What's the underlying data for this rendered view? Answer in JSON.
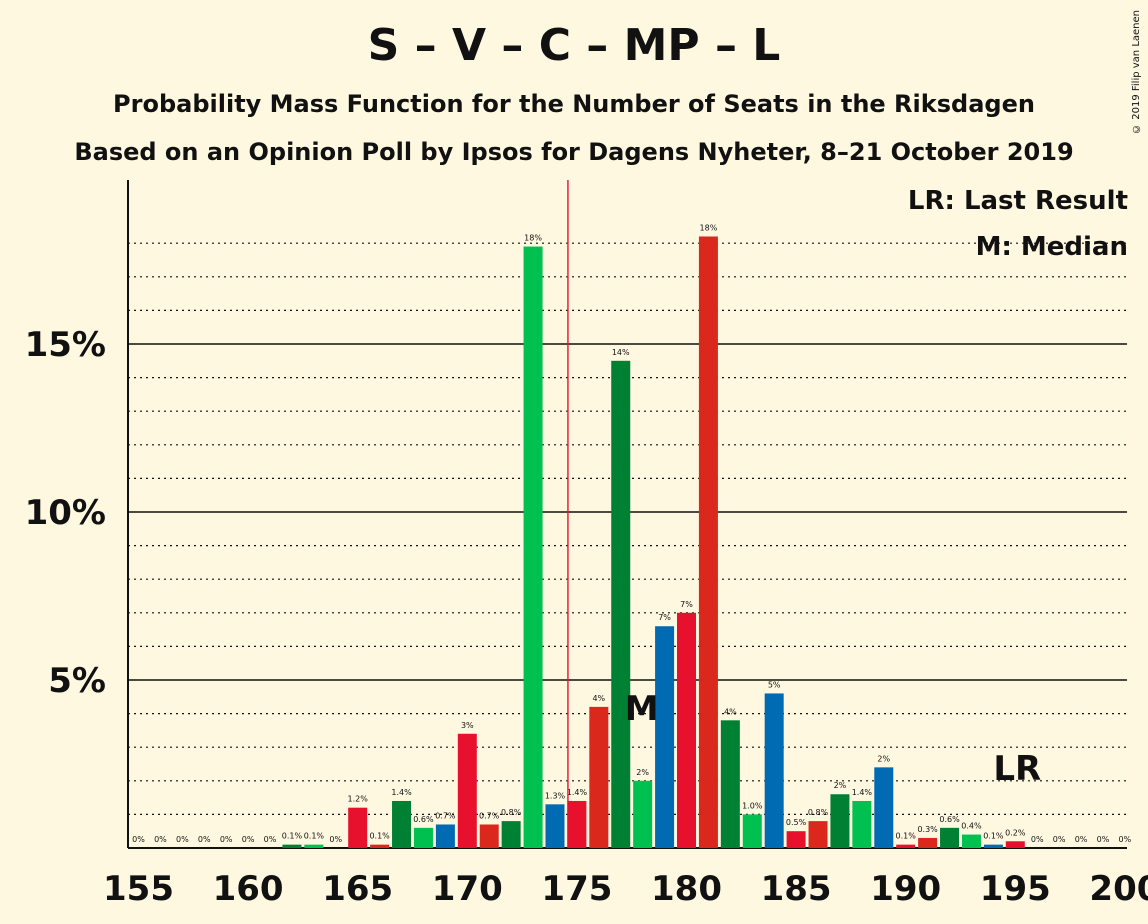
{
  "title": "S – V – C – MP – L",
  "subtitle": "Probability Mass Function for the Number of Seats in the Riksdagen",
  "subtitle2": "Based on an Opinion Poll by Ipsos for Dagens Nyheter, 8–21 October 2019",
  "copyright": "© 2019 Filip van Laenen",
  "legend": {
    "last_result": "LR: Last Result",
    "median": "M: Median"
  },
  "markers": {
    "median_label": "M",
    "median_seat": 178,
    "last_result_label": "LR",
    "last_result_seat": 195,
    "majority_line": 175
  },
  "colors": [
    "#E8112D",
    "#DA291C",
    "#008033",
    "#00C050",
    "#006AB3"
  ],
  "chart_data": {
    "type": "bar",
    "x": [
      155,
      156,
      157,
      158,
      159,
      160,
      161,
      162,
      163,
      164,
      165,
      166,
      167,
      168,
      169,
      170,
      171,
      172,
      173,
      174,
      175,
      176,
      177,
      178,
      179,
      180,
      181,
      182,
      183,
      184,
      185,
      186,
      187,
      188,
      189,
      190,
      191,
      192,
      193,
      194,
      195,
      196,
      197,
      198,
      199,
      200
    ],
    "values": [
      0,
      0,
      0,
      0,
      0,
      0,
      0,
      0.1,
      0.1,
      0,
      1.2,
      0.1,
      1.4,
      0.6,
      0.7,
      3.4,
      0.7,
      0.8,
      17.9,
      1.3,
      1.4,
      4.2,
      14.5,
      2.0,
      6.6,
      7.0,
      18.2,
      3.8,
      1.0,
      4.6,
      0.5,
      0.8,
      1.6,
      1.4,
      2.4,
      0.1,
      0.3,
      0.6,
      0.4,
      0.1,
      0.2,
      0,
      0,
      0,
      0,
      0
    ],
    "labels": [
      "0%",
      "0%",
      "0%",
      "0%",
      "0%",
      "0%",
      "0%",
      "0.1%",
      "0.1%",
      "0%",
      "1.2%",
      "0.1%",
      "1.4%",
      "0.6%",
      "0.7%",
      "3%",
      "0.7%",
      "0.8%",
      "18%",
      "1.3%",
      "1.4%",
      "4%",
      "14%",
      "2%",
      "7%",
      "7%",
      "18%",
      "4%",
      "1.0%",
      "5%",
      "0.5%",
      "0.8%",
      "2%",
      "1.4%",
      "2%",
      "0.1%",
      "0.3%",
      "0.6%",
      "0.4%",
      "0.1%",
      "0.2%",
      "0%",
      "0%",
      "0%",
      "0%",
      "0%"
    ],
    "xlim": [
      155,
      200
    ],
    "ylim": [
      0,
      19
    ],
    "x_ticks": [
      155,
      160,
      165,
      170,
      175,
      180,
      185,
      190,
      195,
      200
    ],
    "y_ticks": [
      {
        "value": 5,
        "label": "5%"
      },
      {
        "value": 10,
        "label": "10%"
      },
      {
        "value": 15,
        "label": "15%"
      }
    ],
    "grid": true
  }
}
